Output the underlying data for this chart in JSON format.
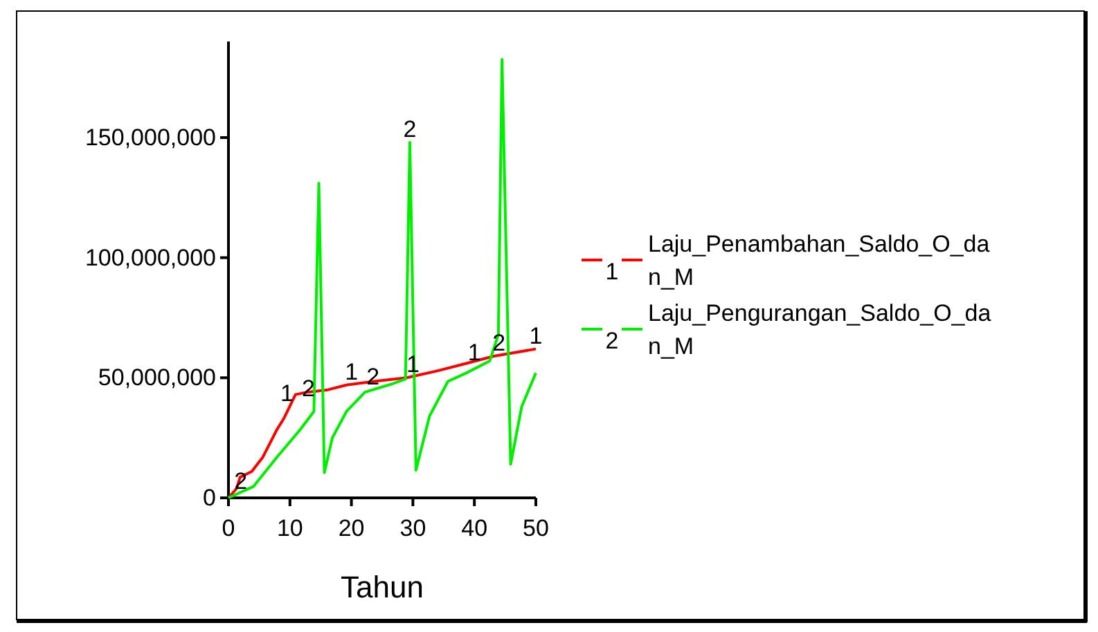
{
  "chart_data": {
    "type": "line",
    "xlabel": "Tahun",
    "legend": "right",
    "marker": "none",
    "line_style": "solid",
    "grid": false,
    "xlim": [
      0,
      50
    ],
    "xticks": [
      0,
      10,
      20,
      30,
      40,
      50
    ],
    "ylim": [
      0,
      190000000
    ],
    "yticks": [
      {
        "value": 0,
        "label": "0"
      },
      {
        "value": 50000000,
        "label": "50,000,000"
      },
      {
        "value": 100000000,
        "label": "100,000,000"
      },
      {
        "value": 150000000,
        "label": "150,000,000"
      }
    ],
    "series": [
      {
        "name": "Laju_Penambahan_Saldo_O_dan_M",
        "color": "#ff0000",
        "x": [
          0,
          1.3,
          1.9,
          3.8,
          5.6,
          7.9,
          9,
          10.9,
          12.8,
          16.2,
          19.2,
          23.7,
          29,
          34.2,
          38.7,
          43.2,
          50
        ],
        "values": [
          0,
          3800000,
          8600000,
          11000000,
          17000000,
          28500000,
          33000000,
          43000000,
          44000000,
          45000000,
          47000000,
          48500000,
          50000000,
          53000000,
          56000000,
          59000000,
          62000000
        ]
      },
      {
        "name": "Laju_Pengurangan_Saldo_O_dan_M",
        "color": "#00ee00",
        "x": [
          0,
          4.1,
          7.9,
          11.7,
          13.9,
          14,
          14.7,
          15.6,
          16.9,
          19.2,
          22.2,
          26.7,
          28.8,
          29.5,
          30.5,
          32.7,
          35.7,
          38.7,
          42.5,
          43.9,
          44.5,
          45.9,
          47.7,
          50
        ],
        "values": [
          0,
          4800000,
          17000000,
          28500000,
          36000000,
          49000000,
          131000000,
          10500000,
          25000000,
          36000000,
          44000000,
          47500000,
          49500000,
          148000000,
          11500000,
          34000000,
          48500000,
          52000000,
          57000000,
          68000000,
          182500000,
          14000000,
          38000000,
          52000000
        ]
      }
    ],
    "annotations": [
      {
        "text": "1",
        "x": 9.5,
        "y": 38000000
      },
      {
        "text": "1",
        "x": 20,
        "y": 47000000
      },
      {
        "text": "1",
        "x": 30,
        "y": 50000000
      },
      {
        "text": "1",
        "x": 40,
        "y": 55000000
      },
      {
        "text": "1",
        "x": 50,
        "y": 62000000
      },
      {
        "text": "2",
        "x": 2,
        "y": 1500000
      },
      {
        "text": "2",
        "x": 13,
        "y": 40000000
      },
      {
        "text": "2",
        "x": 23.5,
        "y": 45000000
      },
      {
        "text": "2",
        "x": 29.5,
        "y": 148000000
      },
      {
        "text": "2",
        "x": 44,
        "y": 59000000
      }
    ]
  }
}
